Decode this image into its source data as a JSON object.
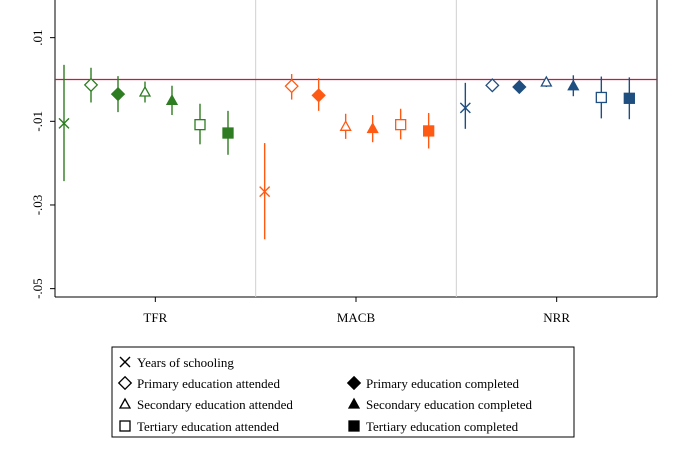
{
  "chart_data": {
    "type": "scatter",
    "subtype": "coefficient-plot-with-confidence-intervals",
    "title": "",
    "xlabel": "",
    "ylabel": "",
    "ylim": [
      -0.052,
      0.019
    ],
    "yticks": [
      0.01,
      -0.01,
      -0.03,
      -0.05
    ],
    "ytick_labels": [
      ".01",
      "-.01",
      "-.03",
      "-.05"
    ],
    "reference_line": 0,
    "groups": [
      "TFR",
      "MACB",
      "NRR"
    ],
    "group_colors": {
      "TFR": "#2e7d22",
      "MACB": "#ff5a14",
      "NRR": "#1f4e80"
    },
    "series": [
      {
        "name": "Years of schooling",
        "marker": "x",
        "values": [
          -0.0105,
          -0.0268,
          -0.0068
        ],
        "ci_low": [
          -0.0243,
          -0.0382,
          -0.0118
        ],
        "ci_high": [
          0.0035,
          -0.0152,
          -0.0008
        ]
      },
      {
        "name": "Primary education attended",
        "marker": "diamond-hollow",
        "values": [
          -0.0013,
          -0.0016,
          -0.0014
        ],
        "ci_low": [
          -0.0055,
          -0.0048,
          -0.0028
        ],
        "ci_high": [
          0.0028,
          0.0013,
          -0.0002
        ]
      },
      {
        "name": "Primary education completed",
        "marker": "diamond-filled",
        "values": [
          -0.0035,
          -0.0038,
          -0.0018
        ],
        "ci_low": [
          -0.0078,
          -0.0075,
          -0.003
        ],
        "ci_high": [
          0.0008,
          0.0003,
          -0.0006
        ]
      },
      {
        "name": "Secondary education attended",
        "marker": "triangle-hollow",
        "values": [
          -0.003,
          -0.0112,
          -0.0006
        ],
        "ci_low": [
          -0.0055,
          -0.0142,
          -0.0018
        ],
        "ci_high": [
          -0.0005,
          -0.0082,
          0.0006
        ]
      },
      {
        "name": "Secondary education completed",
        "marker": "triangle-filled",
        "values": [
          -0.005,
          -0.0117,
          -0.0015
        ],
        "ci_low": [
          -0.0085,
          -0.015,
          -0.004
        ],
        "ci_high": [
          -0.0015,
          -0.0085,
          0.001
        ]
      },
      {
        "name": "Tertiary education attended",
        "marker": "square-hollow",
        "values": [
          -0.0108,
          -0.0108,
          -0.0043
        ],
        "ci_low": [
          -0.0155,
          -0.0143,
          -0.0093
        ],
        "ci_high": [
          -0.0058,
          -0.007,
          0.0007
        ]
      },
      {
        "name": "Tertiary education completed",
        "marker": "square-filled",
        "values": [
          -0.0128,
          -0.0123,
          -0.0045
        ],
        "ci_low": [
          -0.018,
          -0.0165,
          -0.0095
        ],
        "ci_high": [
          -0.0075,
          -0.008,
          0.0005
        ]
      }
    ],
    "legend": {
      "placement": "bottom",
      "columns": [
        [
          "Years of schooling",
          "Primary education attended",
          "Secondary education attended",
          "Tertiary education attended"
        ],
        [
          "",
          "Primary education completed",
          "Secondary education completed",
          "Tertiary education completed"
        ]
      ]
    },
    "grid": false
  }
}
